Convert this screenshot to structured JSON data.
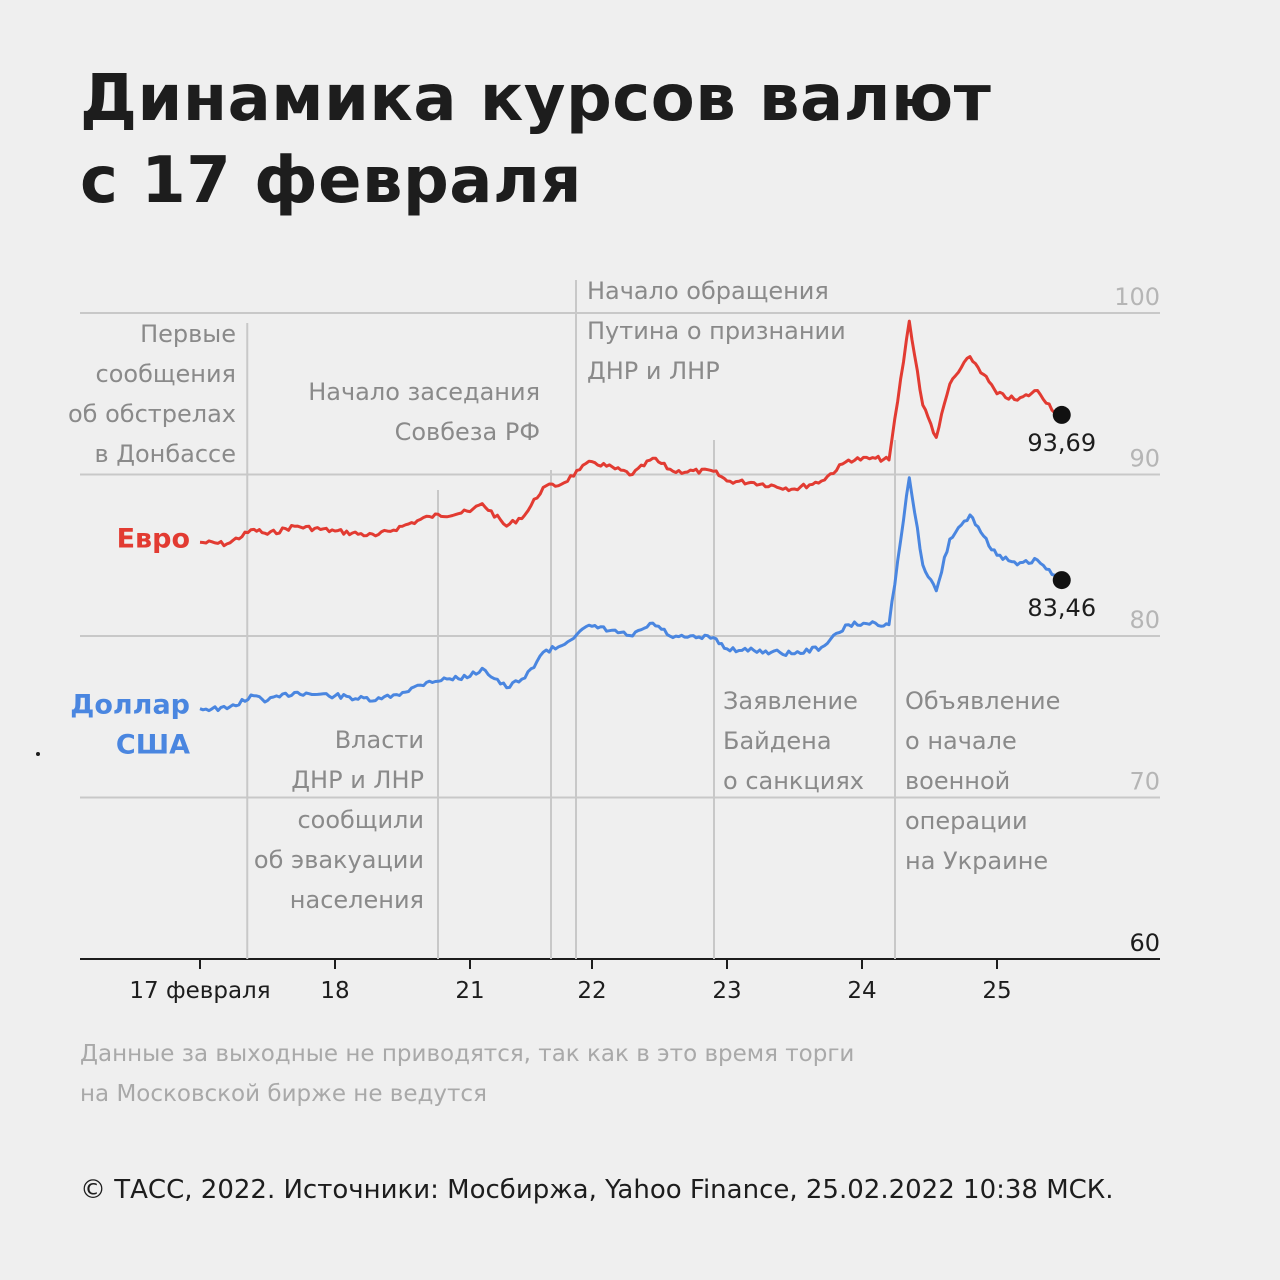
{
  "title": {
    "line1": "Динамика курсов валют",
    "line2": "с 17 февраля"
  },
  "note": {
    "line1": "Данные за выходные не приводятся, так как в это время торги",
    "line2": "на Московской бирже не ведутся"
  },
  "source": "© ТАСС, 2022. Источники: Мосбиржа, Yahoo Finance, 25.02.2022 10:38 МСК.",
  "colors": {
    "euro": "#e23b32",
    "dollar": "#4a86e0",
    "grid": "#c8c8c8",
    "annotation": "#8a8a8a",
    "axis": "#1d1d1d"
  },
  "chart_data": {
    "type": "line",
    "title": "",
    "xlabel": "",
    "ylabel": "",
    "ylim": [
      60,
      100
    ],
    "yticks": [
      60,
      70,
      80,
      90,
      100
    ],
    "grid": true,
    "x_ticks": [
      {
        "label": "17 февраля",
        "x": 0
      },
      {
        "label": "18",
        "x": 1
      },
      {
        "label": "21",
        "x": 2
      },
      {
        "label": "22",
        "x": 3
      },
      {
        "label": "23",
        "x": 4
      },
      {
        "label": "24",
        "x": 5
      },
      {
        "label": "25",
        "x": 6
      }
    ],
    "series": [
      {
        "name": "Евро",
        "key": "euro",
        "x": [
          0,
          0.2,
          0.4,
          0.5,
          0.7,
          1.0,
          1.3,
          1.5,
          1.7,
          2.0,
          2.1,
          2.3,
          2.45,
          2.6,
          2.75,
          2.9,
          3.0,
          3.3,
          3.45,
          3.6,
          3.9,
          4.0,
          4.2,
          4.5,
          4.7,
          4.9,
          5.1,
          5.2,
          5.35,
          5.45,
          5.55,
          5.65,
          5.8,
          5.9,
          6.0,
          6.15,
          6.3,
          6.45
        ],
        "values": [
          85.8,
          85.7,
          86.6,
          86.3,
          86.8,
          86.5,
          86.2,
          86.8,
          87.4,
          87.7,
          88.2,
          86.8,
          87.5,
          89.2,
          89.4,
          90.3,
          90.8,
          90.0,
          91.0,
          90.2,
          90.2,
          89.6,
          89.5,
          89.1,
          89.6,
          90.9,
          91.0,
          90.9,
          99.5,
          94.3,
          92.3,
          95.6,
          97.3,
          96.2,
          95.0,
          94.6,
          95.2,
          93.69
        ]
      },
      {
        "name": "Доллар США",
        "key": "dollar",
        "x": [
          0,
          0.2,
          0.4,
          0.5,
          0.7,
          1.0,
          1.3,
          1.5,
          1.7,
          2.0,
          2.1,
          2.3,
          2.45,
          2.6,
          2.75,
          2.9,
          3.0,
          3.3,
          3.45,
          3.6,
          3.9,
          4.0,
          4.2,
          4.5,
          4.7,
          4.9,
          5.1,
          5.2,
          5.35,
          5.45,
          5.55,
          5.65,
          5.8,
          5.9,
          6.0,
          6.15,
          6.3,
          6.45
        ],
        "values": [
          75.5,
          75.5,
          76.3,
          76.0,
          76.5,
          76.3,
          76.0,
          76.5,
          77.2,
          77.5,
          78.0,
          76.8,
          77.4,
          79.0,
          79.4,
          80.3,
          80.6,
          80.0,
          80.8,
          79.9,
          79.9,
          79.2,
          79.1,
          78.9,
          79.3,
          80.7,
          80.8,
          80.7,
          89.8,
          84.4,
          82.8,
          86.0,
          87.5,
          86.2,
          85.0,
          84.4,
          84.7,
          83.46
        ]
      }
    ],
    "end_labels": [
      {
        "series": "euro",
        "text": "93,69"
      },
      {
        "series": "dollar",
        "text": "83,46"
      }
    ],
    "legend": [
      {
        "series": "euro",
        "lines": [
          "Евро"
        ]
      },
      {
        "series": "dollar",
        "lines": [
          "Доллар",
          "США"
        ]
      }
    ],
    "annotations": [
      {
        "x": 0.35,
        "side": "left",
        "lines": [
          "Первые",
          "сообщения",
          "об обстрелах",
          "в Донбассе"
        ]
      },
      {
        "x": 1.78,
        "side": "left",
        "lines": [
          "Начало заседания",
          "Совбеза РФ"
        ]
      },
      {
        "x": 1.78,
        "side": "left",
        "lines": [
          "Власти",
          "ДНР и ЛНР",
          "сообщили",
          "об эвакуации",
          "населения"
        ]
      },
      {
        "x": 2.9,
        "side": "right",
        "lines": [
          "Начало обращения",
          "Путина о признании",
          "ДНР и ЛНР"
        ]
      },
      {
        "x": 4.0,
        "side": "right",
        "lines": [
          "Заявление",
          "Байдена",
          "о санкциях"
        ]
      },
      {
        "x": 5.25,
        "side": "right",
        "lines": [
          "Объявление",
          "о начале",
          "военной",
          "операции",
          "на Украине"
        ]
      }
    ]
  }
}
